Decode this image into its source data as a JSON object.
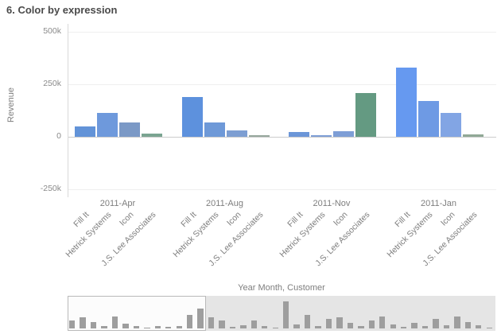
{
  "header": {
    "title": "6. Color by expression"
  },
  "chart_data": {
    "type": "bar",
    "title": "6. Color by expression",
    "ylabel": "Revenue",
    "xlabel": "Year Month, Customer",
    "y_ticks": [
      "500k",
      "250k",
      "0",
      "-250k"
    ],
    "y_tick_values": [
      500000,
      250000,
      0,
      -250000
    ],
    "ylim": [
      -280000,
      560000
    ],
    "legend": "none",
    "grid": "horizontal",
    "categories": [
      "2011-Apr",
      "2011-Aug",
      "2011-Nov",
      "2011-Jan"
    ],
    "customers": [
      "Fill It",
      "Hetrick Systems",
      "Icon",
      "J.S. Lee Associates"
    ],
    "groups": [
      {
        "month": "2011-Apr",
        "bars": [
          {
            "customer": "Fill It",
            "value": 48000,
            "color": "#6293d8"
          },
          {
            "customer": "Hetrick Systems",
            "value": 115000,
            "color": "#6e99dc"
          },
          {
            "customer": "Icon",
            "value": 68000,
            "color": "#7b99c6"
          },
          {
            "customer": "J.S. Lee Associates",
            "value": 17000,
            "color": "#7aa491"
          }
        ]
      },
      {
        "month": "2011-Aug",
        "bars": [
          {
            "customer": "Fill It",
            "value": 190000,
            "color": "#5d91dd"
          },
          {
            "customer": "Hetrick Systems",
            "value": 68000,
            "color": "#6e99d8"
          },
          {
            "customer": "Icon",
            "value": 32000,
            "color": "#7d9ed2"
          },
          {
            "customer": "J.S. Lee Associates",
            "value": 6000,
            "color": "#97a89d"
          }
        ]
      },
      {
        "month": "2011-Nov",
        "bars": [
          {
            "customer": "Fill It",
            "value": 22000,
            "color": "#6c96d8"
          },
          {
            "customer": "Hetrick Systems",
            "value": 9000,
            "color": "#7e9ed6"
          },
          {
            "customer": "Icon",
            "value": 28000,
            "color": "#7e9ed6"
          },
          {
            "customer": "J.S. Lee Associates",
            "value": 210000,
            "color": "#649a82"
          }
        ]
      },
      {
        "month": "2011-Jan",
        "bars": [
          {
            "customer": "Fill It",
            "value": 330000,
            "color": "#6699f0"
          },
          {
            "customer": "Hetrick Systems",
            "value": 170000,
            "color": "#6e9ae4"
          },
          {
            "customer": "Icon",
            "value": 115000,
            "color": "#82a5e4"
          },
          {
            "customer": "J.S. Lee Associates",
            "value": 12000,
            "color": "#90a896"
          }
        ]
      }
    ],
    "navigator": {
      "selection_fraction": 0.32,
      "bar_color": "#9e9e9e",
      "values": [
        0.3,
        0.4,
        0.25,
        0.08,
        0.45,
        0.18,
        0.1,
        0.03,
        0.08,
        0.05,
        0.1,
        0.5,
        0.75,
        0.4,
        0.28,
        0.06,
        0.12,
        0.3,
        0.08,
        0.04,
        1.0,
        0.15,
        0.5,
        0.1,
        0.35,
        0.4,
        0.2,
        0.08,
        0.3,
        0.45,
        0.15,
        0.05,
        0.2,
        0.1,
        0.35,
        0.12,
        0.45,
        0.25,
        0.12,
        0.04
      ]
    }
  }
}
